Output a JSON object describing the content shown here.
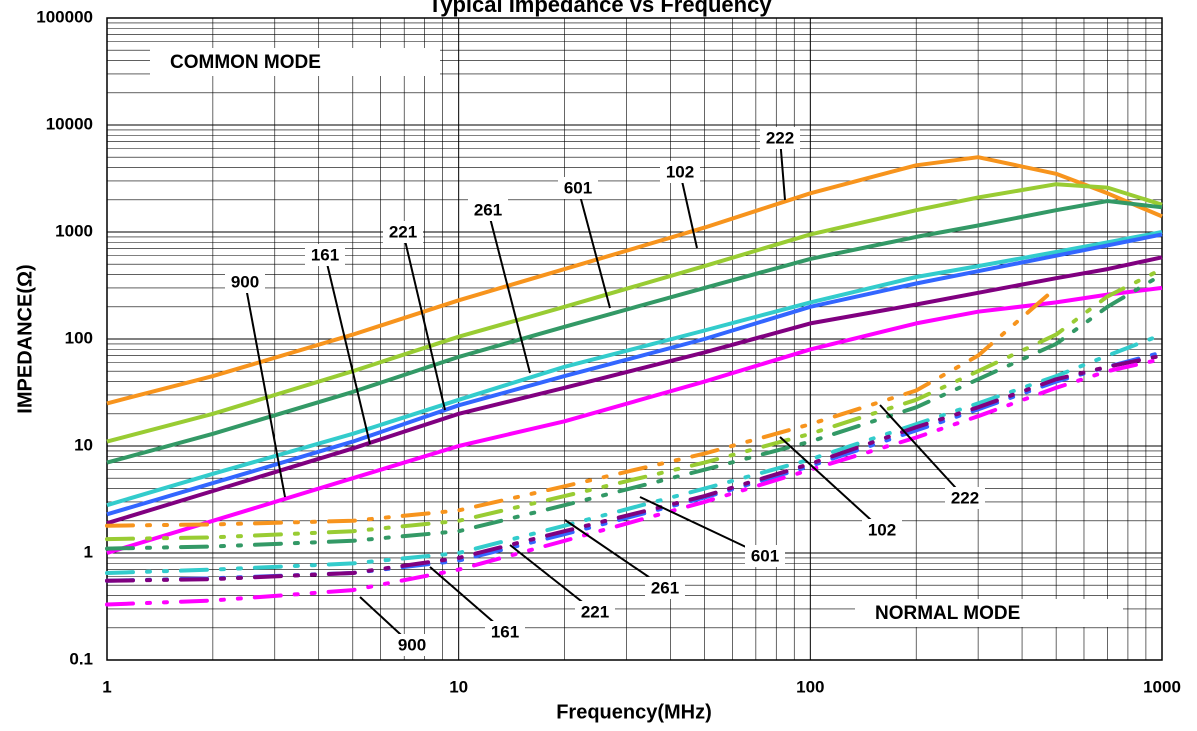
{
  "chart_data": {
    "type": "line",
    "title": "Typical Impedance vs Frequency",
    "x_label": "Frequency(MHz)",
    "y_label": "IMPEDANCE(Ω)",
    "log_x": true,
    "log_y": true,
    "grid": true,
    "xlim": [
      1,
      1000
    ],
    "ylim": [
      0.1,
      100000
    ],
    "xticks": [
      1,
      10,
      100,
      1000
    ],
    "yticks": [
      0.1,
      1,
      10,
      100,
      1000,
      10000,
      100000
    ],
    "annotations": [
      "COMMON MODE",
      "NORMAL MODE"
    ],
    "x": [
      1,
      2,
      5,
      10,
      20,
      50,
      100,
      200,
      300,
      500,
      700,
      1000
    ],
    "series": [
      {
        "name": "222",
        "color": "#f7941d",
        "style": "solid",
        "values": [
          25,
          45,
          110,
          230,
          450,
          1100,
          2300,
          4200,
          5000,
          3500,
          2300,
          1400
        ]
      },
      {
        "name": "102",
        "color": "#99cc33",
        "style": "solid",
        "values": [
          11,
          20,
          50,
          105,
          200,
          480,
          950,
          1600,
          2100,
          2800,
          2600,
          1800
        ]
      },
      {
        "name": "601",
        "color": "#339966",
        "style": "solid",
        "values": [
          7,
          13,
          32,
          68,
          130,
          300,
          560,
          900,
          1150,
          1600,
          1950,
          1700
        ]
      },
      {
        "name": "261",
        "color": "#33cccc",
        "style": "solid",
        "values": [
          2.8,
          5.5,
          13,
          27,
          55,
          120,
          220,
          380,
          480,
          650,
          800,
          1000
        ]
      },
      {
        "name": "221",
        "color": "#3366ff",
        "style": "solid",
        "values": [
          2.3,
          4.5,
          11,
          24,
          45,
          100,
          200,
          330,
          430,
          600,
          750,
          950
        ]
      },
      {
        "name": "161",
        "color": "#800080",
        "style": "solid",
        "values": [
          1.9,
          3.8,
          9.5,
          20,
          35,
          75,
          140,
          210,
          270,
          370,
          450,
          580
        ]
      },
      {
        "name": "900",
        "color": "#ff00ff",
        "style": "solid",
        "values": [
          1.0,
          2,
          5,
          10,
          17,
          40,
          80,
          140,
          180,
          220,
          260,
          300
        ]
      },
      {
        "name": "222",
        "color": "#f7941d",
        "style": "dashed",
        "values": [
          1.8,
          1.85,
          2.0,
          2.5,
          4.2,
          8.5,
          16,
          33,
          70,
          300,
          null,
          null
        ]
      },
      {
        "name": "102",
        "color": "#99cc33",
        "style": "dashed",
        "values": [
          1.35,
          1.4,
          1.6,
          2.0,
          3.4,
          7,
          13,
          27,
          50,
          110,
          250,
          450
        ]
      },
      {
        "name": "601",
        "color": "#339966",
        "style": "dashed",
        "values": [
          1.1,
          1.15,
          1.3,
          1.6,
          2.8,
          6,
          11,
          23,
          42,
          90,
          200,
          400
        ]
      },
      {
        "name": "261",
        "color": "#33cccc",
        "style": "dashed",
        "values": [
          0.65,
          0.7,
          0.8,
          1.0,
          1.8,
          4,
          7.5,
          16,
          25,
          45,
          70,
          110
        ]
      },
      {
        "name": "221",
        "color": "#3366ff",
        "style": "dashed",
        "values": [
          0.55,
          0.58,
          0.65,
          0.85,
          1.5,
          3.3,
          6.5,
          14,
          22,
          40,
          55,
          75
        ]
      },
      {
        "name": "161",
        "color": "#800080",
        "style": "dashed",
        "values": [
          0.55,
          0.57,
          0.65,
          0.9,
          1.6,
          3.4,
          6.8,
          15,
          23,
          42,
          55,
          70
        ]
      },
      {
        "name": "900",
        "color": "#ff00ff",
        "style": "dashed",
        "values": [
          0.33,
          0.36,
          0.45,
          0.7,
          1.3,
          3,
          6,
          12,
          19,
          35,
          50,
          65
        ]
      }
    ]
  }
}
